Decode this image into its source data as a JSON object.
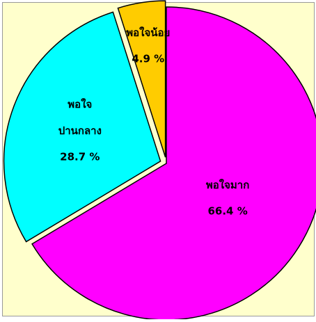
{
  "chart_data": {
    "type": "pie",
    "categories": [
      "พอใจมาก",
      "พอใจ ปานกลาง",
      "พอใจน้อย"
    ],
    "values": [
      66.4,
      28.7,
      4.9
    ],
    "value_labels": [
      "66.4 %",
      "28.7 %",
      "4.9 %"
    ],
    "colors": [
      "#ff00ff",
      "#00ffff",
      "#ffcc00"
    ]
  }
}
